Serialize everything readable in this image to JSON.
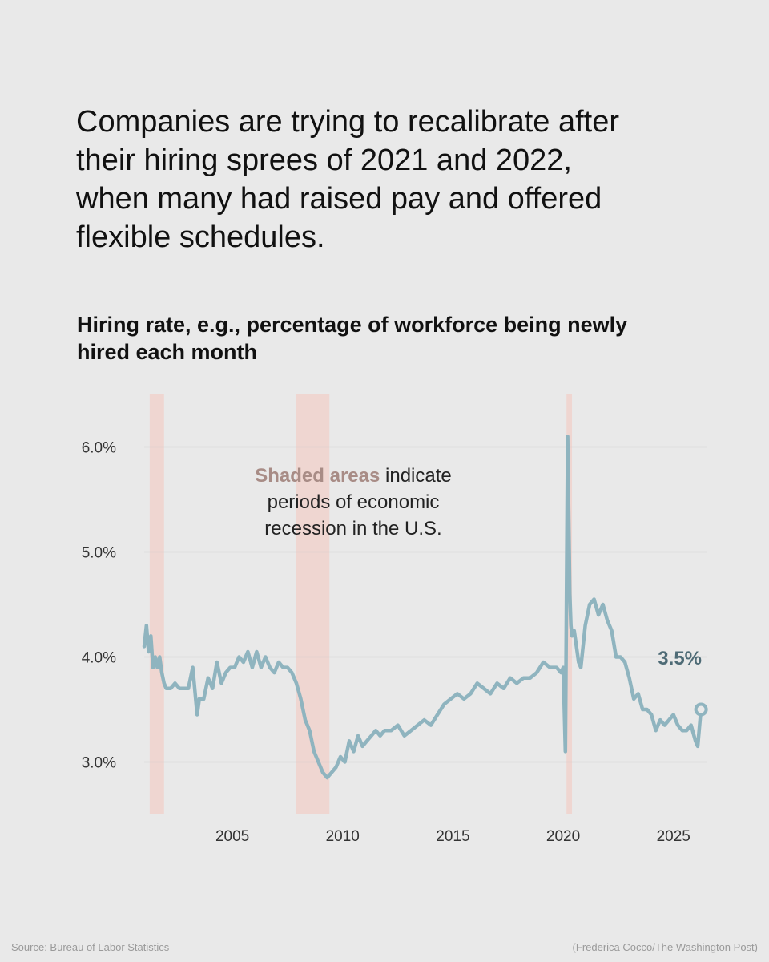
{
  "headline": "Companies are trying to recalibrate after their hiring sprees of 2021 and 2022, when many had raised pay and offered flexible schedules.",
  "chart_data": {
    "type": "line",
    "title": "Hiring rate, e.g., percentage of workforce being newly hired each month",
    "xlabel": "",
    "ylabel": "",
    "xlim": [
      2001.0,
      2026.5
    ],
    "ylim": [
      2.5,
      6.5
    ],
    "x_ticks": [
      2005,
      2010,
      2015,
      2020,
      2025
    ],
    "x_tick_labels": [
      "2005",
      "2010",
      "2015",
      "2020",
      "2025"
    ],
    "y_ticks": [
      3.0,
      4.0,
      5.0,
      6.0
    ],
    "y_tick_labels": [
      "3.0%",
      "4.0%",
      "5.0%",
      "6.0%"
    ],
    "grid": true,
    "line_color": "#8fb4bf",
    "recession_color": "#efd6d1",
    "recessions": [
      [
        2001.25,
        2001.9
      ],
      [
        2007.9,
        2009.4
      ],
      [
        2020.15,
        2020.4
      ]
    ],
    "annotation": {
      "bold": "Shaded areas",
      "line1_rest": " indicate",
      "line2": "periods of economic",
      "line3": "recession in the U.S."
    },
    "end_label": "3.5%",
    "series": [
      {
        "x": [
          2001.0,
          2001.1,
          2001.2,
          2001.3,
          2001.4,
          2001.5,
          2001.6,
          2001.7,
          2001.8,
          2001.9,
          2002.0,
          2002.2,
          2002.4,
          2002.6,
          2002.8,
          2003.0,
          2003.2,
          2003.4,
          2003.5,
          2003.7,
          2003.9,
          2004.1,
          2004.3,
          2004.5,
          2004.7,
          2004.9,
          2005.1,
          2005.3,
          2005.5,
          2005.7,
          2005.9,
          2006.1,
          2006.3,
          2006.5,
          2006.7,
          2006.9,
          2007.1,
          2007.3,
          2007.5,
          2007.7,
          2007.9,
          2008.1,
          2008.3,
          2008.5,
          2008.7,
          2008.9,
          2009.1,
          2009.3,
          2009.5,
          2009.7,
          2009.9,
          2010.1,
          2010.3,
          2010.5,
          2010.7,
          2010.9,
          2011.1,
          2011.3,
          2011.5,
          2011.7,
          2011.9,
          2012.2,
          2012.5,
          2012.8,
          2013.1,
          2013.4,
          2013.7,
          2014.0,
          2014.3,
          2014.6,
          2014.9,
          2015.2,
          2015.5,
          2015.8,
          2016.1,
          2016.4,
          2016.7,
          2017.0,
          2017.3,
          2017.6,
          2017.9,
          2018.2,
          2018.5,
          2018.8,
          2019.1,
          2019.4,
          2019.7,
          2019.9,
          2020.0,
          2020.1,
          2020.2,
          2020.3,
          2020.35,
          2020.4,
          2020.5,
          2020.6,
          2020.7,
          2020.8,
          2021.0,
          2021.2,
          2021.4,
          2021.6,
          2021.8,
          2022.0,
          2022.2,
          2022.4,
          2022.6,
          2022.8,
          2023.0,
          2023.2,
          2023.4,
          2023.6,
          2023.8,
          2024.0,
          2024.2,
          2024.4,
          2024.6,
          2024.8,
          2025.0,
          2025.2,
          2025.4,
          2025.6,
          2025.8,
          2026.0,
          2026.1,
          2026.25
        ],
        "values": [
          4.1,
          4.3,
          4.05,
          4.2,
          3.9,
          4.0,
          3.9,
          4.0,
          3.85,
          3.75,
          3.7,
          3.7,
          3.75,
          3.7,
          3.7,
          3.7,
          3.9,
          3.45,
          3.6,
          3.6,
          3.8,
          3.7,
          3.95,
          3.75,
          3.85,
          3.9,
          3.9,
          4.0,
          3.95,
          4.05,
          3.9,
          4.05,
          3.9,
          4.0,
          3.9,
          3.85,
          3.95,
          3.9,
          3.9,
          3.85,
          3.75,
          3.6,
          3.4,
          3.3,
          3.1,
          3.0,
          2.9,
          2.85,
          2.9,
          2.95,
          3.05,
          3.0,
          3.2,
          3.1,
          3.25,
          3.15,
          3.2,
          3.25,
          3.3,
          3.25,
          3.3,
          3.3,
          3.35,
          3.25,
          3.3,
          3.35,
          3.4,
          3.35,
          3.45,
          3.55,
          3.6,
          3.65,
          3.6,
          3.65,
          3.75,
          3.7,
          3.65,
          3.75,
          3.7,
          3.8,
          3.75,
          3.8,
          3.8,
          3.85,
          3.95,
          3.9,
          3.9,
          3.85,
          3.9,
          3.1,
          6.1,
          4.6,
          4.3,
          4.2,
          4.25,
          4.1,
          3.95,
          3.9,
          4.3,
          4.5,
          4.55,
          4.4,
          4.5,
          4.35,
          4.25,
          4.0,
          4.0,
          3.95,
          3.8,
          3.6,
          3.65,
          3.5,
          3.5,
          3.45,
          3.3,
          3.4,
          3.35,
          3.4,
          3.45,
          3.35,
          3.3,
          3.3,
          3.35,
          3.2,
          3.15,
          3.5
        ]
      }
    ]
  },
  "footer": {
    "source": "Source: Bureau of Labor Statistics",
    "credit": "(Frederica Cocco/The Washington Post)"
  }
}
